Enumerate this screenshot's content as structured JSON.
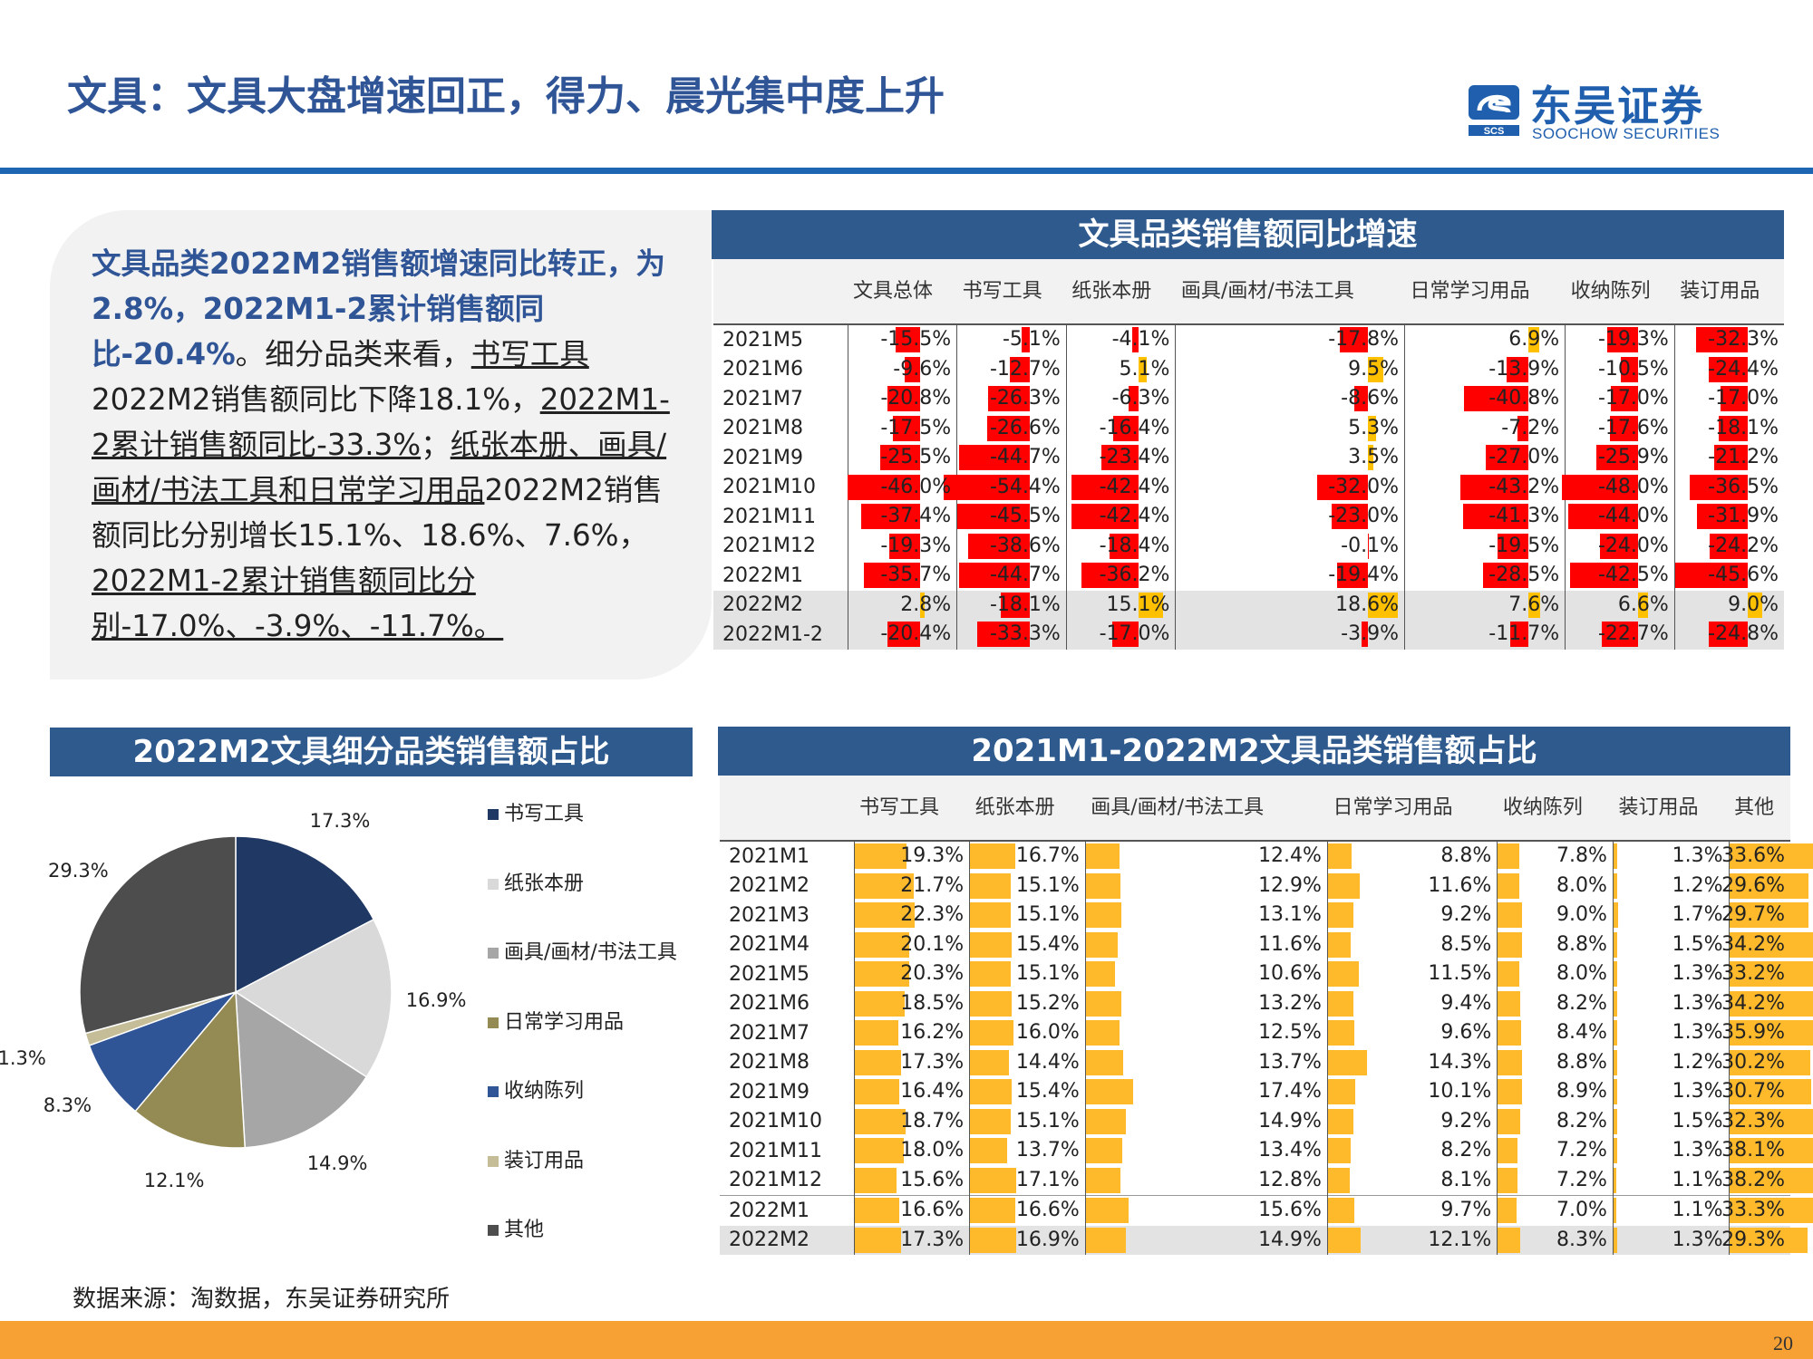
{
  "page": {
    "title": "文具：文具大盘增速回正，得力、晨光集中度上升",
    "logo_cn": "东吴证券",
    "logo_en": "SOOCHOW SECURITIES",
    "logo_mark": "SCS",
    "source": "数据来源：淘数据，东吴证券研究所",
    "page_number": "20",
    "colors": {
      "title": "#2f5597",
      "rule": "#1e66b3",
      "footer": "#f7a033",
      "neg_bar": "#ff0000",
      "pos_bar": "#ffc000",
      "share_bar": "#ffba2c"
    }
  },
  "summary": {
    "lead": "文具品类2022M2销售额增速同比转正，为2.8%，2022M1-2累计销售额同比-20.4%",
    "p1": "。细分品类来看，",
    "u1": "书写工具",
    "p2": "2022M2销售额同比下降18.1%，",
    "u2": "2022M1-2累计销售额同比-33.3%",
    "p3": "；",
    "u3": "纸张本册、画具/画材/书法工具和日常学习用品",
    "p4": "2022M2销售额同比分别增长15.1%、18.6%、7.6%，",
    "u4": "2022M1-2累计销售额同比分别-17.0%、-3.9%、-11.7%。"
  },
  "growth_table": {
    "title": "文具品类销售额同比增速",
    "columns": [
      "文具总体",
      "书写工具",
      "纸张本册",
      "画具/画材/书法工具",
      "日常学习用品",
      "收纳陈列",
      "装订用品"
    ],
    "rows": [
      {
        "label": "2021M5",
        "values": [
          -15.5,
          -5.1,
          -4.1,
          -17.8,
          6.9,
          -19.3,
          -32.3
        ]
      },
      {
        "label": "2021M6",
        "values": [
          -9.6,
          -12.7,
          5.1,
          9.5,
          -13.9,
          -10.5,
          -24.4
        ]
      },
      {
        "label": "2021M7",
        "values": [
          -20.8,
          -26.3,
          -6.3,
          -8.6,
          -40.8,
          -17.0,
          -17.0
        ]
      },
      {
        "label": "2021M8",
        "values": [
          -17.5,
          -26.6,
          -16.4,
          5.3,
          -7.2,
          -17.6,
          -18.1
        ]
      },
      {
        "label": "2021M9",
        "values": [
          -25.5,
          -44.7,
          -23.4,
          3.5,
          -27.0,
          -25.9,
          -21.2
        ]
      },
      {
        "label": "2021M10",
        "values": [
          -46.0,
          -54.4,
          -42.4,
          -32.0,
          -43.2,
          -48.0,
          -36.5
        ]
      },
      {
        "label": "2021M11",
        "values": [
          -37.4,
          -45.5,
          -42.4,
          -23.0,
          -41.3,
          -44.0,
          -31.9
        ]
      },
      {
        "label": "2021M12",
        "values": [
          -19.3,
          -38.6,
          -18.4,
          -0.1,
          -19.5,
          -24.0,
          -24.2
        ]
      },
      {
        "label": "2022M1",
        "values": [
          -35.7,
          -44.7,
          -36.2,
          -19.4,
          -28.5,
          -42.5,
          -45.6
        ]
      },
      {
        "label": "2022M2",
        "values": [
          2.8,
          -18.1,
          15.1,
          18.6,
          7.6,
          6.6,
          9.0
        ]
      },
      {
        "label": "2022M1-2",
        "values": [
          -20.4,
          -33.3,
          -17.0,
          -3.9,
          -11.7,
          -22.7,
          -24.8
        ]
      }
    ]
  },
  "share_table": {
    "title": "2021M1-2022M2文具品类销售额占比",
    "columns": [
      "书写工具",
      "纸张本册",
      "画具/画材/书法工具",
      "日常学习用品",
      "收纳陈列",
      "装订用品",
      "其他"
    ],
    "rows": [
      {
        "label": "2021M1",
        "values": [
          19.3,
          16.7,
          12.4,
          8.8,
          7.8,
          1.3,
          33.6
        ]
      },
      {
        "label": "2021M2",
        "values": [
          21.7,
          15.1,
          12.9,
          11.6,
          8.0,
          1.2,
          29.6
        ]
      },
      {
        "label": "2021M3",
        "values": [
          22.3,
          15.1,
          13.1,
          9.2,
          9.0,
          1.7,
          29.7
        ]
      },
      {
        "label": "2021M4",
        "values": [
          20.1,
          15.4,
          11.6,
          8.5,
          8.8,
          1.5,
          34.2
        ]
      },
      {
        "label": "2021M5",
        "values": [
          20.3,
          15.1,
          10.6,
          11.5,
          8.0,
          1.3,
          33.2
        ]
      },
      {
        "label": "2021M6",
        "values": [
          18.5,
          15.2,
          13.2,
          9.4,
          8.2,
          1.3,
          34.2
        ]
      },
      {
        "label": "2021M7",
        "values": [
          16.2,
          16.0,
          12.5,
          9.6,
          8.4,
          1.3,
          35.9
        ]
      },
      {
        "label": "2021M8",
        "values": [
          17.3,
          14.4,
          13.7,
          14.3,
          8.8,
          1.2,
          30.2
        ]
      },
      {
        "label": "2021M9",
        "values": [
          16.4,
          15.4,
          17.4,
          10.1,
          8.9,
          1.3,
          30.7
        ]
      },
      {
        "label": "2021M10",
        "values": [
          18.7,
          15.1,
          14.9,
          9.2,
          8.2,
          1.5,
          32.3
        ]
      },
      {
        "label": "2021M11",
        "values": [
          18.0,
          13.7,
          13.4,
          8.2,
          7.2,
          1.3,
          38.1
        ]
      },
      {
        "label": "2021M12",
        "values": [
          15.6,
          17.1,
          12.8,
          8.1,
          7.2,
          1.1,
          38.2
        ]
      },
      {
        "label": "2022M1",
        "values": [
          16.6,
          16.6,
          15.6,
          9.7,
          7.0,
          1.1,
          33.3
        ]
      },
      {
        "label": "2022M2",
        "values": [
          17.3,
          16.9,
          14.9,
          12.1,
          8.3,
          1.3,
          29.3
        ]
      }
    ]
  },
  "pie_panel": {
    "title": "2022M2文具细分品类销售额占比"
  },
  "chart_data": {
    "type": "pie",
    "title": "2022M2文具细分品类销售额占比",
    "legend_position": "right",
    "slices": [
      {
        "name": "书写工具",
        "value": 17.3,
        "label": "17.3%",
        "color": "#1f3864"
      },
      {
        "name": "纸张本册",
        "value": 16.9,
        "label": "16.9%",
        "color": "#d9d9d9"
      },
      {
        "name": "画具/画材/书法工具",
        "value": 14.9,
        "label": "14.9%",
        "color": "#a6a6a6"
      },
      {
        "name": "日常学习用品",
        "value": 12.1,
        "label": "12.1%",
        "color": "#948a54"
      },
      {
        "name": "收纳陈列",
        "value": 8.3,
        "label": "8.3%",
        "color": "#2f5597"
      },
      {
        "name": "装订用品",
        "value": 1.3,
        "label": "1.3%",
        "color": "#c4bd97"
      },
      {
        "name": "其他",
        "value": 29.3,
        "label": "29.3%",
        "color": "#4d4d4d"
      }
    ]
  }
}
